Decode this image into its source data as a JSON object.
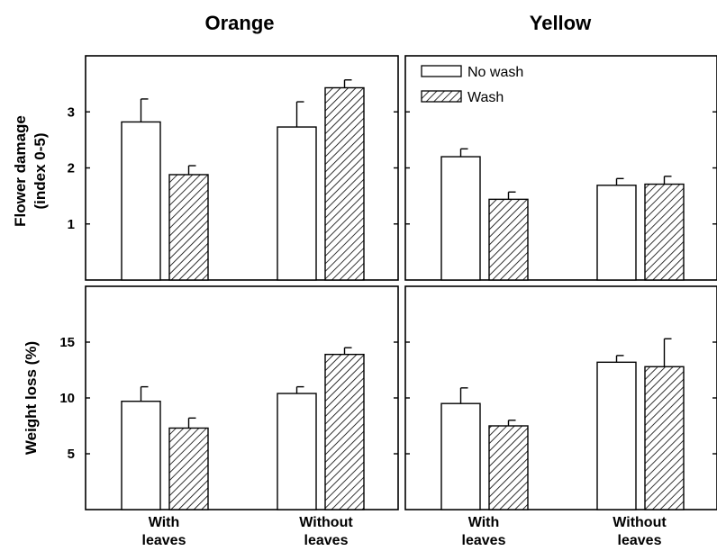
{
  "column_titles": [
    "Orange",
    "Yellow"
  ],
  "legend": [
    {
      "label": "No wash",
      "pattern": "open"
    },
    {
      "label": "Wash",
      "pattern": "hatched"
    }
  ],
  "colors": {
    "bar_fill_open": "#ffffff",
    "bar_stroke": "#000000",
    "hatch": "#000000"
  },
  "chart_data": [
    {
      "type": "bar",
      "title": "Orange",
      "ylabel": "Flower damage (index 0-5)",
      "ylim": [
        0,
        4
      ],
      "yticks": [
        1,
        2,
        3
      ],
      "categories": [
        "With leaves",
        "Without leaves"
      ],
      "series": [
        {
          "name": "No wash",
          "values": [
            2.82,
            2.73
          ],
          "errors": [
            0.41,
            0.45
          ]
        },
        {
          "name": "Wash",
          "values": [
            1.88,
            3.43
          ],
          "errors": [
            0.16,
            0.14
          ]
        }
      ]
    },
    {
      "type": "bar",
      "title": "Yellow",
      "ylabel": "Flower damage (index 0-5)",
      "ylim": [
        0,
        4
      ],
      "yticks": [
        1,
        2,
        3
      ],
      "categories": [
        "With leaves",
        "Without leaves"
      ],
      "series": [
        {
          "name": "No wash",
          "values": [
            2.2,
            1.69
          ],
          "errors": [
            0.14,
            0.12
          ]
        },
        {
          "name": "Wash",
          "values": [
            1.44,
            1.71
          ],
          "errors": [
            0.13,
            0.14
          ]
        }
      ]
    },
    {
      "type": "bar",
      "title": "Orange",
      "ylabel": "Weight loss (%)",
      "ylim": [
        0,
        20
      ],
      "yticks": [
        5,
        10,
        15
      ],
      "categories": [
        "With leaves",
        "Without leaves"
      ],
      "series": [
        {
          "name": "No wash",
          "values": [
            9.7,
            10.4
          ],
          "errors": [
            1.3,
            0.6
          ]
        },
        {
          "name": "Wash",
          "values": [
            7.3,
            13.9
          ],
          "errors": [
            0.9,
            0.6
          ]
        }
      ]
    },
    {
      "type": "bar",
      "title": "Yellow",
      "ylabel": "Weight loss (%)",
      "ylim": [
        0,
        20
      ],
      "yticks": [
        5,
        10,
        15
      ],
      "categories": [
        "With leaves",
        "Without leaves"
      ],
      "series": [
        {
          "name": "No wash",
          "values": [
            9.5,
            13.2
          ],
          "errors": [
            1.4,
            0.6
          ]
        },
        {
          "name": "Wash",
          "values": [
            7.5,
            12.8
          ],
          "errors": [
            0.5,
            2.5
          ]
        }
      ]
    }
  ],
  "x_category_lines": [
    {
      "line1": "With",
      "line2": "leaves"
    },
    {
      "line1": "Without",
      "line2": "leaves"
    }
  ]
}
